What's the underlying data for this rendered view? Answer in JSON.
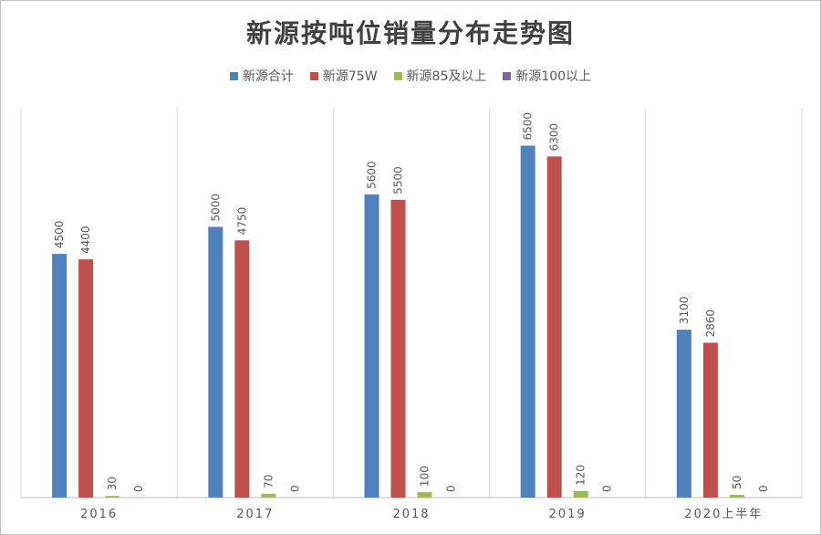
{
  "colors": {
    "series": [
      "#4f81bd",
      "#c0504d",
      "#9bbb59",
      "#8064a2"
    ],
    "grid": "#d9d9d9",
    "axis": "#bfbfbf"
  },
  "chart_data": {
    "type": "bar",
    "title": "新源按吨位销量分布走势图",
    "categories": [
      "2016",
      "2017",
      "2018",
      "2019",
      "2020上半年"
    ],
    "series": [
      {
        "name": "新源合计",
        "values": [
          4500,
          5000,
          5600,
          6500,
          3100
        ]
      },
      {
        "name": "新源75W",
        "values": [
          4400,
          4750,
          5500,
          6300,
          2860
        ]
      },
      {
        "name": "新源85及以上",
        "values": [
          30,
          70,
          100,
          120,
          50
        ]
      },
      {
        "name": "新源100以上",
        "values": [
          0,
          0,
          0,
          0,
          0
        ]
      }
    ],
    "ylim": [
      0,
      7200
    ],
    "grid": true,
    "gridlines": "vertical-category-separators",
    "legend_position": "top",
    "data_labels": true
  }
}
